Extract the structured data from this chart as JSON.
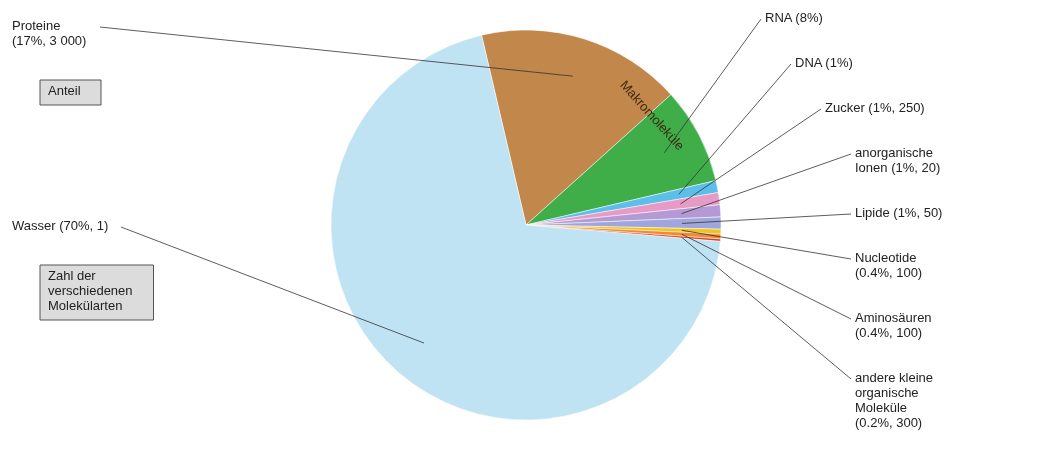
{
  "chart_data": {
    "type": "pie",
    "categories": [
      "Proteine",
      "RNA",
      "DNA",
      "Zucker",
      "anorganische Ionen",
      "Lipide",
      "Nucleotide",
      "Aminosäuren",
      "andere kleine organische Moleküle",
      "Wasser"
    ],
    "values": [
      17,
      8,
      1,
      1,
      1,
      1,
      0.4,
      0.4,
      0.2,
      70
    ],
    "value_labels": [
      "(17%, 3 000)",
      "(8%)",
      "(1%)",
      "(1%, 250)",
      "(1%, 20)",
      "(1%, 50)",
      "(0.4%, 100)",
      "(0.4%, 100)",
      "(0.2%, 300)",
      "(70%, 1)"
    ],
    "colors": [
      "#c2874a",
      "#3fae49",
      "#5bbfe9",
      "#e79ac5",
      "#b49ad4",
      "#9fa6dc",
      "#f2c318",
      "#f08a2a",
      "#d8402c",
      "#bfe3f2"
    ],
    "annotations": [
      "Makromoleküle",
      "Anteil",
      "Zahl der verschiedenen Molekülarten"
    ]
  }
}
